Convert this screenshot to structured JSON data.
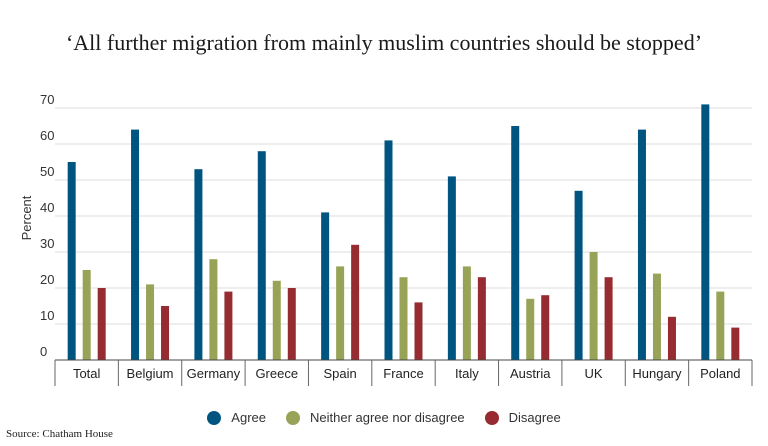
{
  "chart_data": {
    "type": "bar",
    "title": "‘All further migration from mainly muslim countries should be stopped’",
    "ylabel": "Percent",
    "xlabel": "",
    "ylim": [
      0,
      70
    ],
    "yticks": [
      "0",
      "10",
      "20",
      "30",
      "40",
      "50",
      "60",
      "70"
    ],
    "grid": true,
    "legend_position": "bottom",
    "categories": [
      "Total",
      "Belgium",
      "Germany",
      "Greece",
      "Spain",
      "France",
      "Italy",
      "Austria",
      "UK",
      "Hungary",
      "Poland"
    ],
    "series": [
      {
        "name": "Agree",
        "color": "#005580",
        "values": [
          55,
          64,
          53,
          58,
          41,
          61,
          51,
          65,
          47,
          64,
          71
        ]
      },
      {
        "name": "Neither agree nor disagree",
        "color": "#99a357",
        "values": [
          25,
          21,
          28,
          22,
          26,
          23,
          26,
          17,
          30,
          24,
          19
        ]
      },
      {
        "name": "Disagree",
        "color": "#962b31",
        "values": [
          20,
          15,
          19,
          20,
          32,
          16,
          23,
          18,
          23,
          12,
          9
        ]
      }
    ]
  },
  "source": "Source: Chatham House"
}
